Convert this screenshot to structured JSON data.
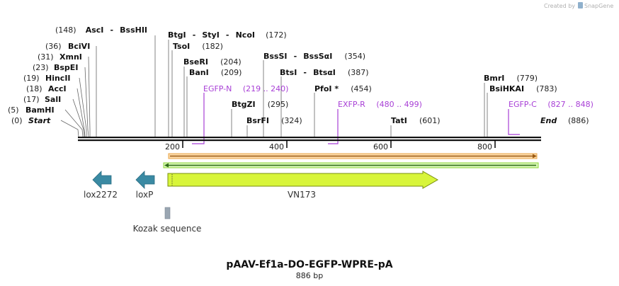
{
  "credit": "Created by",
  "brand": "SnapGene",
  "title": "pAAV-Ef1a-DO-EGFP-WPRE-pA",
  "subtitle": "886 bp",
  "start_label": "Start",
  "start_pos": "(0)",
  "end_label": "End",
  "end_pos": "(886)",
  "ticks": [
    "200",
    "400",
    "600",
    "800"
  ],
  "left_sites": [
    {
      "pos": "(5)",
      "name": "BamHI"
    },
    {
      "pos": "(17)",
      "name": "SalI"
    },
    {
      "pos": "(18)",
      "name": "AccI"
    },
    {
      "pos": "(19)",
      "name": "HincII"
    },
    {
      "pos": "(23)",
      "name": "BspEI"
    },
    {
      "pos": "(31)",
      "name": "XmnI"
    },
    {
      "pos": "(36)",
      "name": "BciVI"
    }
  ],
  "asc_site": {
    "pos": "(148)",
    "name": "AscI",
    "sep": "-",
    "name2": "BssHII"
  },
  "btg_site": {
    "name": "BtgI",
    "sep1": "-",
    "name2": "StyI",
    "sep2": "-",
    "name3": "NcoI",
    "pos": "(172)"
  },
  "mid_sites": [
    {
      "name": "TsoI",
      "pos": "(182)"
    },
    {
      "name": "BseRI",
      "pos": "(204)"
    },
    {
      "name": "BanI",
      "pos": "(209)"
    },
    {
      "name": "BtgZI",
      "pos": "(295)"
    },
    {
      "name": "BsrFI",
      "pos": "(324)"
    },
    {
      "name": "PfoI *",
      "pos": "(454)"
    },
    {
      "name": "TatI",
      "pos": "(601)"
    },
    {
      "name": "BmrI",
      "pos": "(779)"
    },
    {
      "name": "BsiHKAI",
      "pos": "(783)"
    }
  ],
  "bsssi_site": {
    "name": "BssSI",
    "sep": "-",
    "name2": "BssSαI",
    "pos": "(354)"
  },
  "btsi_site": {
    "name": "BtsI",
    "sep": "-",
    "name2": "BtsαI",
    "pos": "(387)"
  },
  "primers": [
    {
      "name": "EGFP-N",
      "range": "(219 .. 240)"
    },
    {
      "name": "EXFP-R",
      "range": "(480 .. 499)"
    },
    {
      "name": "EGFP-C",
      "range": "(827 .. 848)"
    }
  ],
  "features": {
    "lox2272": "lox2272",
    "loxp": "loxP",
    "vn173": "VN173",
    "kozak": "Kozak sequence"
  },
  "colors": {
    "primer": "#a83fd6",
    "lox": "#3a8aa3",
    "vn173": "#d8f53a",
    "orf_orange": "#e8a64a",
    "orf_green": "#8fd63a",
    "kozak": "#9aa6b2"
  }
}
